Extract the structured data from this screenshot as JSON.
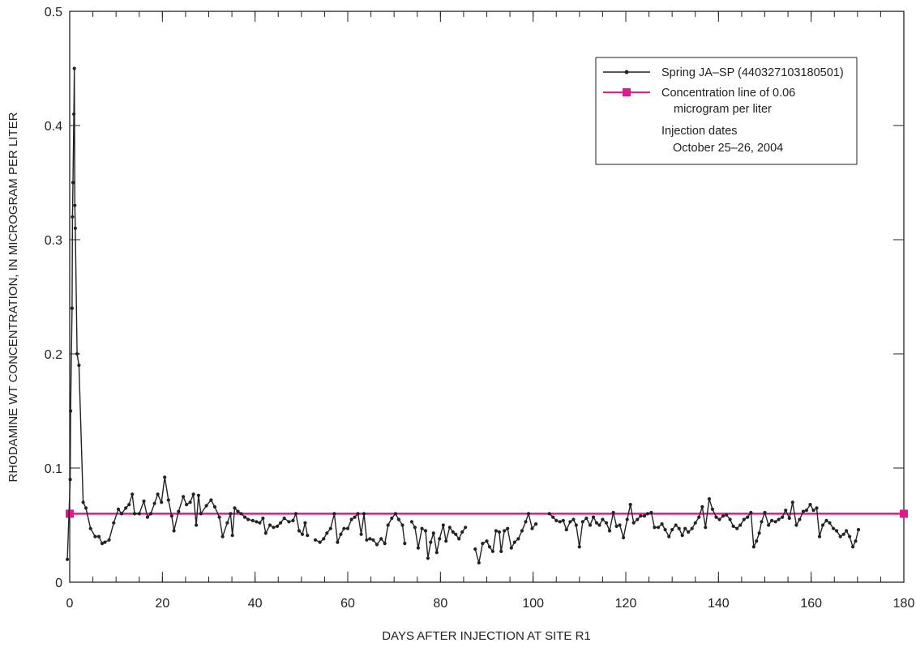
{
  "chart_data": {
    "type": "line",
    "xlabel": "DAYS AFTER INJECTION AT SITE R1",
    "ylabel": "RHODAMINE WT CONCENTRATION, IN MICROGRAM PER LITER",
    "xlim": [
      0,
      180
    ],
    "ylim": [
      0,
      0.5
    ],
    "x_ticks": [
      0,
      20,
      40,
      60,
      80,
      100,
      120,
      140,
      160,
      180
    ],
    "x_tick_labels": [
      "0",
      "20",
      "40",
      "60",
      "80",
      "100",
      "120",
      "140",
      "160",
      "180"
    ],
    "y_ticks": [
      0,
      0.1,
      0.2,
      0.3,
      0.4,
      0.5
    ],
    "y_tick_labels": [
      "0",
      "0.1",
      "0.2",
      "0.3",
      "0.4",
      "0.5"
    ],
    "grid": false,
    "legend_position": "top-right",
    "colors": {
      "spring": "#222222",
      "threshold": "#e0198c"
    },
    "series": [
      {
        "name": "Spring JA–SP (440327103180501)",
        "segments": [
          [
            [
              -0.5,
              0.02
            ],
            [
              0.1,
              0.09
            ],
            [
              0.2,
              0.15
            ],
            [
              0.5,
              0.24
            ],
            [
              0.6,
              0.32
            ],
            [
              0.7,
              0.35
            ],
            [
              0.9,
              0.41
            ],
            [
              1.0,
              0.45
            ],
            [
              1.1,
              0.33
            ],
            [
              1.2,
              0.31
            ],
            [
              1.6,
              0.2
            ],
            [
              2.0,
              0.19
            ],
            [
              2.9,
              0.07
            ],
            [
              3.5,
              0.065
            ],
            [
              4.5,
              0.047
            ],
            [
              5.5,
              0.04
            ],
            [
              6.3,
              0.04
            ],
            [
              7.0,
              0.034
            ],
            [
              7.6,
              0.035
            ],
            [
              8.5,
              0.037
            ],
            [
              9.5,
              0.052
            ],
            [
              10.5,
              0.064
            ],
            [
              11.2,
              0.06
            ],
            [
              12.1,
              0.065
            ],
            [
              12.8,
              0.068
            ],
            [
              13.5,
              0.077
            ],
            [
              14.0,
              0.06
            ],
            [
              15.0,
              0.06
            ],
            [
              16.0,
              0.071
            ],
            [
              16.8,
              0.057
            ],
            [
              17.5,
              0.06
            ],
            [
              18.3,
              0.069
            ],
            [
              19.0,
              0.077
            ],
            [
              19.8,
              0.07
            ],
            [
              20.5,
              0.092
            ],
            [
              21.3,
              0.072
            ],
            [
              22.0,
              0.058
            ],
            [
              22.5,
              0.045
            ],
            [
              23.5,
              0.062
            ],
            [
              24.5,
              0.075
            ],
            [
              25.2,
              0.068
            ],
            [
              26.0,
              0.07
            ],
            [
              26.7,
              0.077
            ],
            [
              27.3,
              0.05
            ],
            [
              27.8,
              0.076
            ],
            [
              28.3,
              0.06
            ],
            [
              29.5,
              0.067
            ],
            [
              30.5,
              0.072
            ],
            [
              31.3,
              0.066
            ],
            [
              32.3,
              0.057
            ],
            [
              33.0,
              0.04
            ],
            [
              34.0,
              0.052
            ],
            [
              34.7,
              0.06
            ],
            [
              35.1,
              0.041
            ],
            [
              35.6,
              0.065
            ],
            [
              36.3,
              0.062
            ],
            [
              37.0,
              0.06
            ],
            [
              37.8,
              0.057
            ],
            [
              38.5,
              0.055
            ],
            [
              39.5,
              0.054
            ],
            [
              40.3,
              0.053
            ],
            [
              41.0,
              0.052
            ],
            [
              41.7,
              0.056
            ],
            [
              42.3,
              0.043
            ],
            [
              43.2,
              0.05
            ],
            [
              44.0,
              0.048
            ],
            [
              44.8,
              0.049
            ],
            [
              45.5,
              0.052
            ],
            [
              46.3,
              0.056
            ],
            [
              47.3,
              0.053
            ],
            [
              48.2,
              0.054
            ],
            [
              48.8,
              0.06
            ],
            [
              49.5,
              0.045
            ],
            [
              50.2,
              0.042
            ],
            [
              50.8,
              0.052
            ],
            [
              51.3,
              0.041
            ]
          ],
          [
            [
              53.0,
              0.037
            ],
            [
              54.0,
              0.035
            ],
            [
              54.8,
              0.038
            ],
            [
              55.5,
              0.043
            ],
            [
              56.3,
              0.047
            ],
            [
              57.1,
              0.06
            ],
            [
              57.8,
              0.035
            ],
            [
              58.5,
              0.042
            ],
            [
              59.2,
              0.047
            ],
            [
              60.0,
              0.047
            ],
            [
              60.8,
              0.055
            ],
            [
              61.5,
              0.057
            ],
            [
              62.2,
              0.06
            ],
            [
              62.9,
              0.042
            ],
            [
              63.5,
              0.06
            ],
            [
              64.1,
              0.037
            ],
            [
              64.8,
              0.038
            ],
            [
              65.5,
              0.037
            ],
            [
              66.3,
              0.033
            ],
            [
              67.2,
              0.038
            ],
            [
              68.0,
              0.034
            ],
            [
              68.7,
              0.05
            ],
            [
              69.5,
              0.056
            ],
            [
              70.3,
              0.06
            ],
            [
              71.0,
              0.055
            ],
            [
              71.8,
              0.05
            ],
            [
              72.3,
              0.034
            ]
          ],
          [
            [
              73.8,
              0.053
            ],
            [
              74.5,
              0.048
            ],
            [
              75.2,
              0.03
            ],
            [
              76.0,
              0.047
            ],
            [
              76.8,
              0.045
            ],
            [
              77.3,
              0.021
            ],
            [
              77.9,
              0.035
            ],
            [
              78.5,
              0.043
            ],
            [
              79.2,
              0.026
            ],
            [
              79.8,
              0.038
            ],
            [
              80.6,
              0.05
            ],
            [
              81.2,
              0.036
            ],
            [
              82.0,
              0.048
            ],
            [
              82.7,
              0.044
            ],
            [
              83.3,
              0.042
            ],
            [
              84.0,
              0.038
            ],
            [
              84.7,
              0.044
            ],
            [
              85.4,
              0.048
            ]
          ],
          [
            [
              87.5,
              0.029
            ],
            [
              88.3,
              0.017
            ],
            [
              89.1,
              0.034
            ],
            [
              90.0,
              0.036
            ],
            [
              90.6,
              0.031
            ],
            [
              91.3,
              0.027
            ],
            [
              92.0,
              0.045
            ],
            [
              92.7,
              0.044
            ],
            [
              93.1,
              0.027
            ],
            [
              93.8,
              0.045
            ],
            [
              94.5,
              0.047
            ],
            [
              95.3,
              0.03
            ],
            [
              96.0,
              0.035
            ],
            [
              96.8,
              0.038
            ],
            [
              97.6,
              0.045
            ],
            [
              98.4,
              0.053
            ],
            [
              99.0,
              0.06
            ],
            [
              99.8,
              0.047
            ],
            [
              100.6,
              0.051
            ]
          ],
          [
            [
              103.5,
              0.06
            ],
            [
              104.3,
              0.057
            ],
            [
              105.0,
              0.054
            ],
            [
              105.8,
              0.053
            ],
            [
              106.5,
              0.054
            ],
            [
              107.2,
              0.046
            ],
            [
              108.0,
              0.053
            ],
            [
              108.7,
              0.055
            ],
            [
              109.3,
              0.05
            ],
            [
              110.0,
              0.031
            ],
            [
              110.7,
              0.053
            ],
            [
              111.5,
              0.056
            ],
            [
              112.3,
              0.05
            ],
            [
              113.0,
              0.057
            ],
            [
              113.7,
              0.052
            ],
            [
              114.3,
              0.05
            ],
            [
              115.0,
              0.055
            ],
            [
              115.8,
              0.052
            ],
            [
              116.5,
              0.045
            ],
            [
              117.3,
              0.061
            ],
            [
              118.0,
              0.049
            ],
            [
              118.7,
              0.05
            ],
            [
              119.5,
              0.039
            ],
            [
              120.3,
              0.055
            ],
            [
              121.0,
              0.068
            ],
            [
              121.7,
              0.052
            ],
            [
              122.5,
              0.055
            ],
            [
              123.2,
              0.058
            ],
            [
              124.0,
              0.058
            ],
            [
              124.7,
              0.06
            ],
            [
              125.5,
              0.061
            ],
            [
              126.2,
              0.048
            ],
            [
              127.0,
              0.048
            ],
            [
              127.8,
              0.051
            ],
            [
              128.5,
              0.046
            ],
            [
              129.3,
              0.04
            ],
            [
              130.0,
              0.046
            ],
            [
              130.8,
              0.05
            ],
            [
              131.5,
              0.047
            ],
            [
              132.2,
              0.041
            ],
            [
              132.8,
              0.047
            ],
            [
              133.5,
              0.044
            ],
            [
              134.3,
              0.047
            ],
            [
              135.0,
              0.052
            ],
            [
              135.8,
              0.057
            ],
            [
              136.5,
              0.066
            ],
            [
              137.2,
              0.048
            ],
            [
              138.0,
              0.073
            ],
            [
              138.7,
              0.064
            ],
            [
              139.5,
              0.057
            ],
            [
              140.2,
              0.055
            ],
            [
              141.0,
              0.058
            ],
            [
              141.7,
              0.059
            ],
            [
              142.5,
              0.055
            ],
            [
              143.2,
              0.049
            ],
            [
              144.0,
              0.047
            ],
            [
              144.7,
              0.05
            ],
            [
              145.5,
              0.055
            ],
            [
              146.3,
              0.057
            ],
            [
              147.0,
              0.061
            ],
            [
              147.6,
              0.031
            ],
            [
              148.2,
              0.036
            ],
            [
              148.8,
              0.043
            ],
            [
              149.3,
              0.053
            ],
            [
              150.0,
              0.061
            ],
            [
              150.8,
              0.05
            ],
            [
              151.5,
              0.054
            ],
            [
              152.3,
              0.053
            ],
            [
              153.0,
              0.055
            ],
            [
              153.8,
              0.057
            ],
            [
              154.5,
              0.063
            ],
            [
              155.3,
              0.056
            ],
            [
              156.0,
              0.07
            ],
            [
              156.8,
              0.05
            ],
            [
              157.5,
              0.055
            ],
            [
              158.3,
              0.062
            ],
            [
              159.0,
              0.063
            ],
            [
              159.8,
              0.068
            ],
            [
              160.5,
              0.063
            ],
            [
              161.2,
              0.065
            ],
            [
              161.8,
              0.04
            ],
            [
              162.5,
              0.05
            ],
            [
              163.3,
              0.054
            ],
            [
              164.0,
              0.052
            ],
            [
              164.8,
              0.047
            ],
            [
              165.5,
              0.045
            ],
            [
              166.3,
              0.04
            ],
            [
              167.0,
              0.042
            ],
            [
              167.6,
              0.045
            ],
            [
              168.3,
              0.04
            ],
            [
              169.0,
              0.031
            ],
            [
              169.6,
              0.036
            ],
            [
              170.2,
              0.046
            ]
          ]
        ]
      },
      {
        "name": "Concentration line of 0.06 microgram per liter",
        "value": 0.06
      }
    ],
    "legend": {
      "spring_label": "Spring JA–SP (440327103180501)",
      "threshold_line1": "Concentration line of 0.06",
      "threshold_line2": "microgram per liter",
      "injection_line1": "Injection dates",
      "injection_line2": "October 25–26, 2004"
    }
  }
}
